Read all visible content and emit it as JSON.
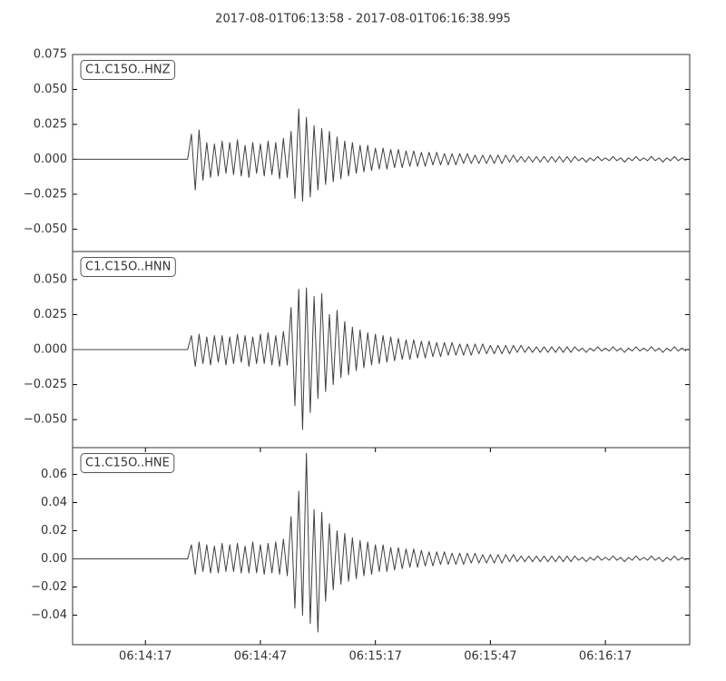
{
  "chart_data": [
    {
      "type": "line",
      "title": "2017-08-01T06:13:58  -  2017-08-01T06:16:38.995",
      "x": [
        0,
        30,
        31,
        32,
        33,
        34,
        35,
        36,
        37,
        38,
        39,
        40,
        41,
        42,
        43,
        44,
        45,
        46,
        47,
        48,
        49,
        50,
        51,
        52,
        53,
        54,
        55,
        56,
        57,
        58,
        59,
        60,
        61,
        62,
        63,
        64,
        65,
        66,
        67,
        68,
        69,
        70,
        71,
        72,
        73,
        74,
        75,
        76,
        77,
        78,
        79,
        80,
        81,
        82,
        83,
        84,
        85,
        86,
        87,
        88,
        89,
        90,
        91,
        92,
        93,
        94,
        95,
        96,
        97,
        98,
        99,
        100,
        101,
        102,
        103,
        104,
        105,
        106,
        107,
        108,
        109,
        110,
        111,
        112,
        113,
        114,
        115,
        116,
        117,
        118,
        119,
        120,
        121,
        122,
        123,
        124,
        125,
        126,
        127,
        128,
        129,
        130,
        131,
        132,
        133,
        134,
        135,
        136,
        137,
        138,
        139,
        140,
        141,
        142,
        143,
        144,
        145,
        146,
        147,
        148,
        149,
        150,
        151,
        152,
        153,
        154,
        155,
        156,
        157,
        158,
        159,
        160
      ],
      "xlim": [
        0,
        160.995
      ],
      "ylim": [
        -0.066,
        0.075
      ],
      "yticks": [
        {
          "value": -0.05,
          "label": "−0.050"
        },
        {
          "value": -0.025,
          "label": "−0.025"
        },
        {
          "value": 0,
          "label": "0.000"
        },
        {
          "value": 0.025,
          "label": "0.025"
        },
        {
          "value": 0.05,
          "label": "0.050"
        },
        {
          "value": 0.075,
          "label": "0.075"
        }
      ],
      "series": [
        {
          "name": "C1.C15O..HNZ",
          "color": "#404040",
          "values": [
            0,
            0,
            0.018,
            -0.022,
            0.021,
            -0.015,
            0.012,
            -0.013,
            0.011,
            -0.012,
            0.013,
            -0.01,
            0.012,
            -0.011,
            0.014,
            -0.012,
            0.01,
            -0.013,
            0.012,
            -0.01,
            0.011,
            -0.012,
            0.013,
            -0.011,
            0.012,
            -0.014,
            0.015,
            -0.013,
            0.02,
            -0.028,
            0.036,
            -0.03,
            0.03,
            -0.027,
            0.024,
            -0.022,
            0.022,
            -0.018,
            0.02,
            -0.016,
            0.016,
            -0.014,
            0.013,
            -0.012,
            0.012,
            -0.01,
            0.01,
            -0.009,
            0.01,
            -0.008,
            0.008,
            -0.007,
            0.008,
            -0.007,
            0.007,
            -0.006,
            0.007,
            -0.006,
            0.006,
            -0.005,
            0.006,
            -0.005,
            0.005,
            -0.005,
            0.005,
            -0.004,
            0.005,
            -0.004,
            0.004,
            -0.004,
            0.004,
            -0.004,
            0.004,
            -0.003,
            0.004,
            -0.003,
            0.003,
            -0.003,
            0.003,
            -0.003,
            0.003,
            -0.003,
            0.003,
            -0.003,
            0.003,
            -0.002,
            0.003,
            -0.002,
            0.002,
            -0.002,
            0.002,
            -0.002,
            0.002,
            -0.002,
            0.002,
            -0.002,
            0.002,
            -0.002,
            0.002,
            -0.002,
            0.002,
            -0.002,
            0.002,
            -0.001,
            0.001,
            -0.002,
            0.001,
            -0.001,
            0.002,
            -0.001,
            0.001,
            -0.001,
            0.002,
            -0.001,
            0.001,
            -0.002,
            0.001,
            -0.001,
            0.002,
            -0.001,
            0.001,
            -0.001,
            0.002,
            -0.001,
            0.001,
            -0.002,
            0.001,
            -0.001,
            0.002,
            -0.001,
            0.001,
            -0.001
          ]
        }
      ]
    },
    {
      "type": "line",
      "x": [
        0,
        30,
        31,
        32,
        33,
        34,
        35,
        36,
        37,
        38,
        39,
        40,
        41,
        42,
        43,
        44,
        45,
        46,
        47,
        48,
        49,
        50,
        51,
        52,
        53,
        54,
        55,
        56,
        57,
        58,
        59,
        60,
        61,
        62,
        63,
        64,
        65,
        66,
        67,
        68,
        69,
        70,
        71,
        72,
        73,
        74,
        75,
        76,
        77,
        78,
        79,
        80,
        81,
        82,
        83,
        84,
        85,
        86,
        87,
        88,
        89,
        90,
        91,
        92,
        93,
        94,
        95,
        96,
        97,
        98,
        99,
        100,
        101,
        102,
        103,
        104,
        105,
        106,
        107,
        108,
        109,
        110,
        111,
        112,
        113,
        114,
        115,
        116,
        117,
        118,
        119,
        120,
        121,
        122,
        123,
        124,
        125,
        126,
        127,
        128,
        129,
        130,
        131,
        132,
        133,
        134,
        135,
        136,
        137,
        138,
        139,
        140,
        141,
        142,
        143,
        144,
        145,
        146,
        147,
        148,
        149,
        150,
        151,
        152,
        153,
        154,
        155,
        156,
        157,
        158,
        159,
        160
      ],
      "xlim": [
        0,
        160.995
      ],
      "ylim": [
        -0.07,
        0.07
      ],
      "yticks": [
        {
          "value": -0.05,
          "label": "−0.050"
        },
        {
          "value": -0.025,
          "label": "−0.025"
        },
        {
          "value": 0,
          "label": "0.000"
        },
        {
          "value": 0.025,
          "label": "0.025"
        },
        {
          "value": 0.05,
          "label": "0.050"
        }
      ],
      "series": [
        {
          "name": "C1.C15O..HNN",
          "color": "#404040",
          "values": [
            0,
            0,
            0.01,
            -0.012,
            0.011,
            -0.01,
            0.009,
            -0.011,
            0.01,
            -0.009,
            0.01,
            -0.011,
            0.009,
            -0.01,
            0.011,
            -0.009,
            0.01,
            -0.012,
            0.009,
            -0.01,
            0.011,
            -0.01,
            0.012,
            -0.011,
            0.01,
            -0.012,
            0.013,
            -0.011,
            0.03,
            -0.04,
            0.043,
            -0.057,
            0.044,
            -0.045,
            0.038,
            -0.035,
            0.04,
            -0.03,
            0.025,
            -0.025,
            0.028,
            -0.02,
            0.02,
            -0.018,
            0.016,
            -0.015,
            0.014,
            -0.013,
            0.012,
            -0.011,
            0.011,
            -0.01,
            0.01,
            -0.009,
            0.009,
            -0.008,
            0.008,
            -0.007,
            0.007,
            -0.007,
            0.007,
            -0.006,
            0.006,
            -0.006,
            0.006,
            -0.005,
            0.005,
            -0.005,
            0.005,
            -0.004,
            0.005,
            -0.004,
            0.004,
            -0.004,
            0.004,
            -0.004,
            0.004,
            -0.003,
            0.004,
            -0.003,
            0.003,
            -0.003,
            0.003,
            -0.003,
            0.003,
            -0.003,
            0.003,
            -0.002,
            0.003,
            -0.002,
            0.002,
            -0.002,
            0.002,
            -0.002,
            0.002,
            -0.002,
            0.002,
            -0.002,
            0.002,
            -0.002,
            0.002,
            -0.002,
            0.002,
            -0.001,
            0.001,
            -0.002,
            0.001,
            -0.001,
            0.002,
            -0.001,
            0.001,
            -0.001,
            0.002,
            -0.001,
            0.001,
            -0.002,
            0.001,
            -0.001,
            0.002,
            -0.001,
            0.001,
            -0.001,
            0.002,
            -0.001,
            0.001,
            -0.002,
            0.001,
            -0.001,
            0.002,
            -0.001,
            0.001,
            -0.001
          ]
        }
      ]
    },
    {
      "type": "line",
      "x": [
        0,
        30,
        31,
        32,
        33,
        34,
        35,
        36,
        37,
        38,
        39,
        40,
        41,
        42,
        43,
        44,
        45,
        46,
        47,
        48,
        49,
        50,
        51,
        52,
        53,
        54,
        55,
        56,
        57,
        58,
        59,
        60,
        61,
        62,
        63,
        64,
        65,
        66,
        67,
        68,
        69,
        70,
        71,
        72,
        73,
        74,
        75,
        76,
        77,
        78,
        79,
        80,
        81,
        82,
        83,
        84,
        85,
        86,
        87,
        88,
        89,
        90,
        91,
        92,
        93,
        94,
        95,
        96,
        97,
        98,
        99,
        100,
        101,
        102,
        103,
        104,
        105,
        106,
        107,
        108,
        109,
        110,
        111,
        112,
        113,
        114,
        115,
        116,
        117,
        118,
        119,
        120,
        121,
        122,
        123,
        124,
        125,
        126,
        127,
        128,
        129,
        130,
        131,
        132,
        133,
        134,
        135,
        136,
        137,
        138,
        139,
        140,
        141,
        142,
        143,
        144,
        145,
        146,
        147,
        148,
        149,
        150,
        151,
        152,
        153,
        154,
        155,
        156,
        157,
        158,
        159,
        160
      ],
      "xlim": [
        0,
        160.995
      ],
      "xticks": [
        {
          "value": 19,
          "label": "06:14:17"
        },
        {
          "value": 49,
          "label": "06:14:47"
        },
        {
          "value": 79,
          "label": "06:15:17"
        },
        {
          "value": 109,
          "label": "06:15:47"
        },
        {
          "value": 139,
          "label": "06:16:17"
        }
      ],
      "ylim": [
        -0.061,
        0.079
      ],
      "yticks": [
        {
          "value": -0.04,
          "label": "−0.04"
        },
        {
          "value": -0.02,
          "label": "−0.02"
        },
        {
          "value": 0,
          "label": "0.00"
        },
        {
          "value": 0.02,
          "label": "0.02"
        },
        {
          "value": 0.04,
          "label": "0.04"
        },
        {
          "value": 0.06,
          "label": "0.06"
        }
      ],
      "series": [
        {
          "name": "C1.C15O..HNE",
          "color": "#404040",
          "values": [
            0,
            0,
            0.01,
            -0.011,
            0.012,
            -0.009,
            0.01,
            -0.01,
            0.009,
            -0.01,
            0.011,
            -0.009,
            0.01,
            -0.009,
            0.011,
            -0.01,
            0.009,
            -0.01,
            0.012,
            -0.01,
            0.01,
            -0.011,
            0.011,
            -0.01,
            0.012,
            -0.011,
            0.014,
            -0.012,
            0.03,
            -0.035,
            0.048,
            -0.04,
            0.075,
            -0.046,
            0.035,
            -0.052,
            0.033,
            -0.03,
            0.025,
            -0.022,
            0.02,
            -0.018,
            0.018,
            -0.016,
            0.015,
            -0.014,
            0.013,
            -0.012,
            0.012,
            -0.011,
            0.01,
            -0.009,
            0.01,
            -0.009,
            0.008,
            -0.008,
            0.008,
            -0.007,
            0.007,
            -0.006,
            0.007,
            -0.006,
            0.006,
            -0.005,
            0.005,
            -0.005,
            0.005,
            -0.004,
            0.005,
            -0.004,
            0.004,
            -0.004,
            0.004,
            -0.004,
            0.004,
            -0.003,
            0.004,
            -0.003,
            0.003,
            -0.003,
            0.003,
            -0.003,
            0.003,
            -0.003,
            0.003,
            -0.002,
            0.003,
            -0.002,
            0.002,
            -0.002,
            0.002,
            -0.002,
            0.002,
            -0.002,
            0.002,
            -0.002,
            0.002,
            -0.002,
            0.002,
            -0.002,
            0.002,
            -0.002,
            0.002,
            -0.001,
            0.001,
            -0.002,
            0.001,
            -0.001,
            0.002,
            -0.001,
            0.001,
            -0.001,
            0.002,
            -0.001,
            0.001,
            -0.002,
            0.001,
            -0.001,
            0.002,
            -0.001,
            0.001,
            -0.001,
            0.002,
            -0.001,
            0.001,
            -0.002,
            0.001,
            -0.001,
            0.002,
            -0.001,
            0.001,
            -0.001
          ]
        }
      ]
    }
  ]
}
